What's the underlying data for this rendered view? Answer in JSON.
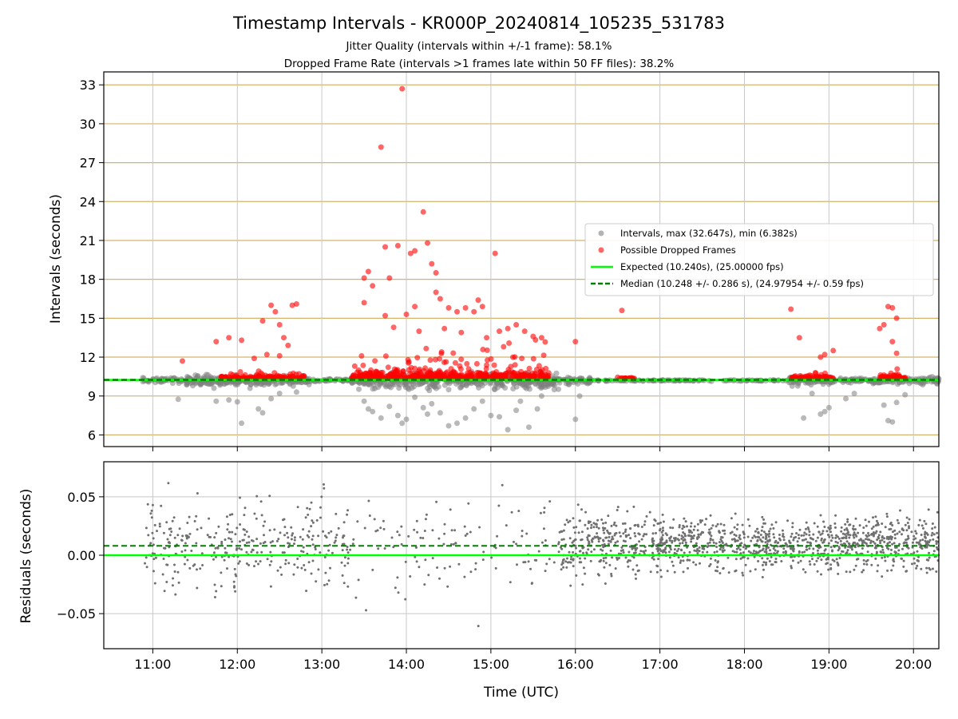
{
  "figure": {
    "title": "Timestamp Intervals - KR000P_20240814_105235_531783",
    "subtitle_1": "Jitter Quality (intervals within +/-1 frame): 58.1%",
    "subtitle_2": "Dropped Frame Rate (intervals >1 frames late within 50 FF files): 38.2%"
  },
  "chart_data": [
    {
      "type": "scatter",
      "panel": "intervals",
      "ylabel": "Intervals (seconds)",
      "ylim": [
        5.1,
        34.0
      ],
      "yticks": [
        6,
        9,
        12,
        15,
        18,
        21,
        24,
        27,
        30,
        33
      ],
      "xlim_hours": [
        10.42,
        20.3
      ],
      "grid": "on",
      "legend_position": "right",
      "legend": [
        {
          "label": "Intervals, max (32.647s), min (6.382s)",
          "color": "#808080",
          "marker": "circle"
        },
        {
          "label": "Possible Dropped Frames",
          "color": "#ff0000",
          "marker": "circle"
        },
        {
          "label": "Expected (10.240s), (25.00000 fps)",
          "color": "#00ff00",
          "marker": "solid-line"
        },
        {
          "label": "Median (10.248 +/- 0.286 s), (24.97954 +/- 0.59 fps)",
          "color": "#008000",
          "marker": "dashed-line"
        }
      ],
      "expected": 10.24,
      "median": 10.248,
      "series": [
        {
          "name": "Intervals, max (32.647s), min (6.382s)",
          "color": "#808080",
          "points": [
            [
              11.3,
              8.75
            ],
            [
              11.75,
              8.6
            ],
            [
              11.9,
              8.7
            ],
            [
              12.0,
              8.55
            ],
            [
              12.05,
              6.9
            ],
            [
              12.15,
              9.6
            ],
            [
              12.25,
              8.0
            ],
            [
              12.3,
              7.7
            ],
            [
              12.4,
              8.8
            ],
            [
              12.5,
              9.2
            ],
            [
              12.7,
              9.3
            ],
            [
              13.5,
              8.6
            ],
            [
              13.55,
              8.0
            ],
            [
              13.6,
              7.8
            ],
            [
              13.7,
              7.3
            ],
            [
              13.8,
              8.2
            ],
            [
              13.9,
              7.5
            ],
            [
              13.95,
              6.9
            ],
            [
              14.0,
              7.2
            ],
            [
              14.1,
              8.9
            ],
            [
              14.2,
              8.1
            ],
            [
              14.25,
              7.6
            ],
            [
              14.3,
              8.4
            ],
            [
              14.4,
              7.7
            ],
            [
              14.5,
              6.7
            ],
            [
              14.6,
              6.9
            ],
            [
              14.7,
              7.3
            ],
            [
              14.8,
              8.0
            ],
            [
              14.9,
              8.6
            ],
            [
              15.0,
              7.5
            ],
            [
              15.1,
              7.4
            ],
            [
              15.2,
              6.4
            ],
            [
              15.3,
              7.9
            ],
            [
              15.35,
              8.6
            ],
            [
              15.45,
              6.6
            ],
            [
              15.55,
              8.0
            ],
            [
              15.6,
              9.0
            ],
            [
              15.75,
              9.5
            ],
            [
              16.0,
              7.2
            ],
            [
              16.05,
              9.0
            ],
            [
              18.7,
              7.3
            ],
            [
              18.8,
              9.2
            ],
            [
              18.9,
              7.6
            ],
            [
              18.95,
              7.8
            ],
            [
              19.0,
              8.1
            ],
            [
              19.2,
              8.8
            ],
            [
              19.3,
              9.2
            ],
            [
              19.65,
              8.3
            ],
            [
              19.7,
              7.1
            ],
            [
              19.75,
              7.0
            ],
            [
              19.8,
              8.5
            ],
            [
              19.9,
              9.1
            ]
          ]
        },
        {
          "name": "Possible Dropped Frames",
          "color": "#ff0000",
          "points": [
            [
              11.35,
              11.7
            ],
            [
              11.75,
              13.2
            ],
            [
              11.9,
              13.5
            ],
            [
              12.05,
              13.3
            ],
            [
              12.3,
              14.8
            ],
            [
              12.4,
              16.0
            ],
            [
              12.45,
              15.5
            ],
            [
              12.5,
              14.5
            ],
            [
              12.55,
              13.5
            ],
            [
              12.6,
              12.9
            ],
            [
              12.65,
              16.0
            ],
            [
              12.7,
              16.1
            ],
            [
              12.2,
              11.9
            ],
            [
              12.35,
              12.2
            ],
            [
              12.5,
              12.1
            ],
            [
              13.5,
              16.2
            ],
            [
              13.5,
              18.1
            ],
            [
              13.55,
              18.6
            ],
            [
              13.6,
              17.5
            ],
            [
              13.7,
              28.2
            ],
            [
              13.75,
              20.5
            ],
            [
              13.8,
              18.1
            ],
            [
              13.95,
              32.7
            ],
            [
              13.9,
              20.6
            ],
            [
              14.05,
              20.0
            ],
            [
              14.1,
              20.2
            ],
            [
              14.1,
              15.9
            ],
            [
              14.2,
              23.2
            ],
            [
              14.25,
              20.8
            ],
            [
              14.3,
              19.2
            ],
            [
              14.35,
              18.5
            ],
            [
              14.35,
              17.0
            ],
            [
              14.4,
              16.5
            ],
            [
              14.5,
              15.8
            ],
            [
              14.6,
              15.5
            ],
            [
              14.7,
              15.8
            ],
            [
              14.8,
              15.5
            ],
            [
              14.85,
              16.4
            ],
            [
              14.9,
              15.9
            ],
            [
              15.05,
              20.0
            ],
            [
              15.1,
              14.0
            ],
            [
              15.2,
              14.2
            ],
            [
              15.3,
              14.5
            ],
            [
              15.4,
              14.0
            ],
            [
              15.5,
              13.6
            ],
            [
              15.6,
              13.5
            ],
            [
              13.75,
              15.2
            ],
            [
              13.85,
              14.3
            ],
            [
              14.0,
              15.3
            ],
            [
              14.15,
              14.0
            ],
            [
              14.45,
              14.2
            ],
            [
              14.65,
              13.9
            ],
            [
              14.95,
              13.5
            ],
            [
              15.15,
              12.8
            ],
            [
              16.0,
              13.2
            ],
            [
              16.55,
              15.6
            ],
            [
              18.55,
              15.7
            ],
            [
              18.65,
              13.5
            ],
            [
              18.9,
              12.0
            ],
            [
              18.95,
              12.2
            ],
            [
              19.05,
              12.5
            ],
            [
              19.6,
              14.2
            ],
            [
              19.65,
              14.5
            ],
            [
              19.7,
              15.9
            ],
            [
              19.75,
              15.8
            ],
            [
              19.8,
              15.0
            ],
            [
              19.75,
              13.2
            ],
            [
              19.8,
              12.3
            ]
          ]
        }
      ]
    },
    {
      "type": "scatter",
      "panel": "residuals",
      "xlabel": "Time (UTC)",
      "ylabel": "Residuals (seconds)",
      "ylim": [
        -0.08,
        0.08
      ],
      "yticks": [
        -0.05,
        0.0,
        0.05
      ],
      "ytick_labels": [
        "−0.05",
        "0.00",
        "0.05"
      ],
      "xticks_hours": [
        11,
        12,
        13,
        14,
        15,
        16,
        17,
        18,
        19,
        20
      ],
      "xtick_labels": [
        "11:00",
        "12:00",
        "13:00",
        "14:00",
        "15:00",
        "16:00",
        "17:00",
        "18:00",
        "19:00",
        "20:00"
      ],
      "xlim_hours": [
        10.42,
        20.3
      ],
      "grid": "on",
      "expected": 0.0,
      "median": 0.008,
      "series_color": "#808080",
      "expected_color": "#00ff00",
      "median_color": "#008000"
    }
  ]
}
